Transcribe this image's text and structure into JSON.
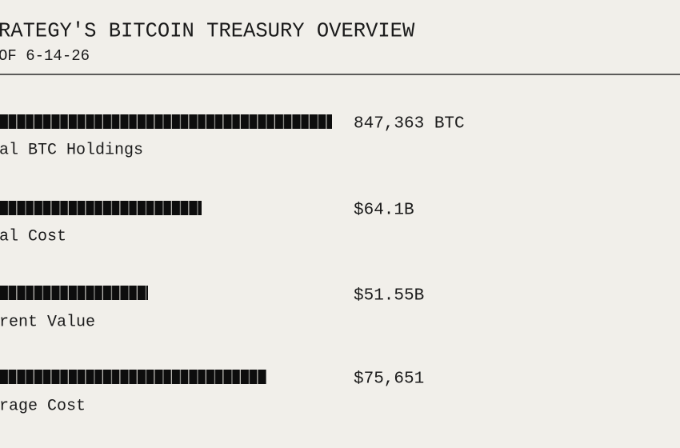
{
  "header": {
    "title": "RATEGY'S BITCOIN TREASURY OVERVIEW",
    "subtitle": "OF 6-14-26"
  },
  "items": [
    {
      "label": "al BTC Holdings",
      "value": "847,363 BTC"
    },
    {
      "label": "al Cost",
      "value": "$64.1B"
    },
    {
      "label": "rent Value",
      "value": "$51.55B"
    },
    {
      "label": "rage Cost",
      "value": "$75,651"
    }
  ]
}
